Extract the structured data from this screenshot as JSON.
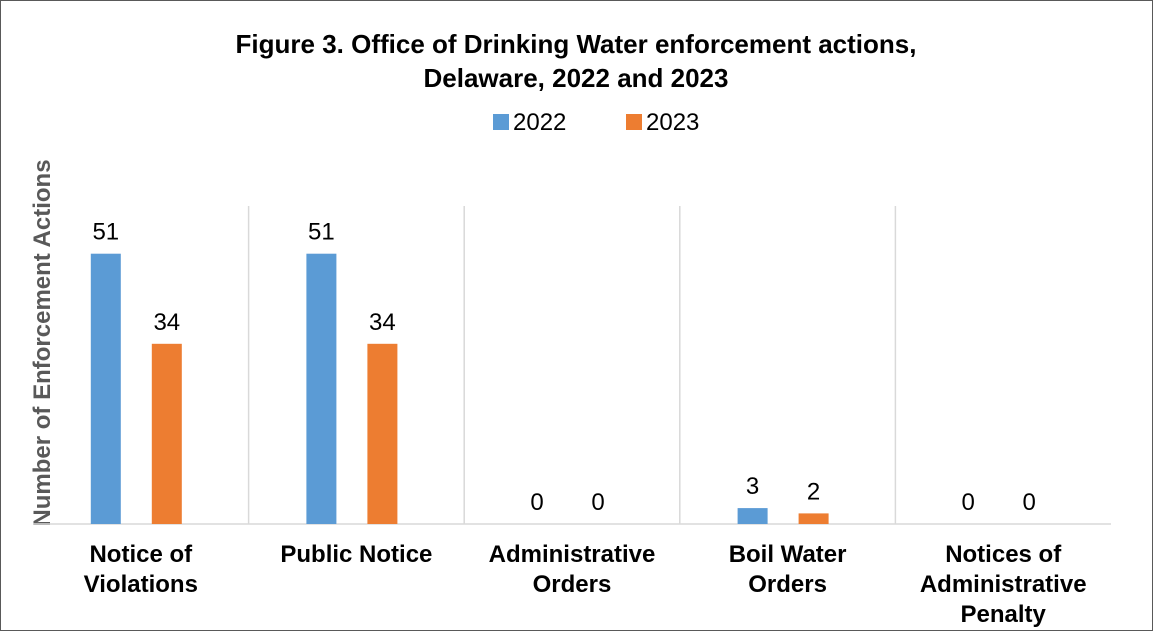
{
  "chart_data": {
    "type": "bar",
    "title_lines": [
      "Figure 3. Office of Drinking Water enforcement actions,",
      "Delaware, 2022 and 2023"
    ],
    "ylabel": "Number of Enforcement Actions",
    "xlabel": "",
    "categories": [
      [
        "Notice of",
        "Violations"
      ],
      [
        "Public Notice"
      ],
      [
        "Administrative",
        "Orders"
      ],
      [
        "Boil Water",
        "Orders"
      ],
      [
        "Notices of",
        "Administrative",
        "Penalty"
      ]
    ],
    "series": [
      {
        "name": "2022",
        "color": "#5B9BD5",
        "values": [
          51,
          51,
          0,
          3,
          0
        ]
      },
      {
        "name": "2023",
        "color": "#ED7D31",
        "values": [
          34,
          34,
          0,
          2,
          0
        ]
      }
    ],
    "ylim": [
      0,
      60
    ],
    "legend_position": "top",
    "grid": "vertical-separators",
    "data_labels": true
  }
}
